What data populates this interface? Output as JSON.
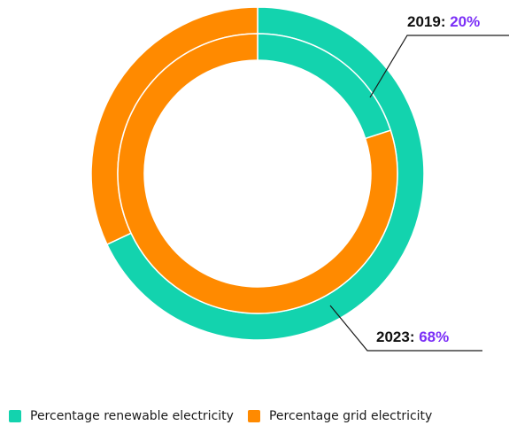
{
  "chart_data": {
    "type": "donut",
    "series": [
      {
        "name": "2023",
        "ring": "outer",
        "values": [
          68,
          32
        ]
      },
      {
        "name": "2019",
        "ring": "inner",
        "values": [
          20,
          80
        ]
      }
    ],
    "categories": [
      "Percentage renewable electricity",
      "Percentage grid electricity"
    ],
    "colors": [
      "#13D3AE",
      "#FF8A00"
    ],
    "callouts": [
      {
        "year": "2019",
        "value": "20%",
        "ring": "inner"
      },
      {
        "year": "2023",
        "value": "68%",
        "ring": "outer"
      }
    ],
    "callout_value_color": "#7B2FF7",
    "legend_position": "bottom-left"
  }
}
